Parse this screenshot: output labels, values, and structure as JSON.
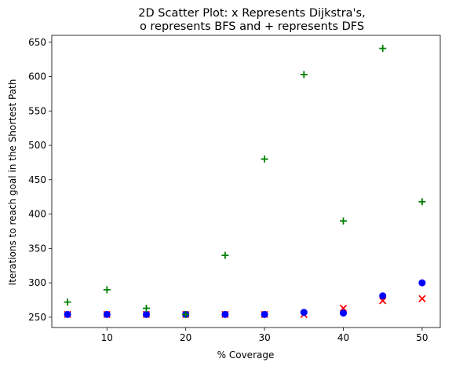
{
  "chart_data": {
    "type": "scatter",
    "title_line1": "2D Scatter Plot: x Represents Dijkstra's,",
    "title_line2": "o represents BFS and + represents DFS",
    "xlabel": "% Coverage",
    "ylabel": "Iterations to reach goal in the Shortest Path",
    "xlim": [
      3,
      52.3
    ],
    "ylim": [
      235,
      660
    ],
    "xticks": [
      10,
      20,
      30,
      40,
      50
    ],
    "yticks": [
      250,
      300,
      350,
      400,
      450,
      500,
      550,
      600,
      650
    ],
    "grid": false,
    "series": [
      {
        "marker": "x",
        "color": "#ff0000",
        "x": [
          5,
          10,
          15,
          20,
          25,
          30,
          35,
          40,
          45,
          50
        ],
        "y": [
          254,
          254,
          254,
          254,
          254,
          254,
          254,
          263,
          274,
          277
        ]
      },
      {
        "marker": "o",
        "color": "#0000ff",
        "x": [
          5,
          10,
          15,
          20,
          25,
          30,
          35,
          40,
          45,
          50
        ],
        "y": [
          254,
          254,
          254,
          254,
          254,
          254,
          257,
          256,
          281,
          300
        ]
      },
      {
        "marker": "+",
        "color": "#008000",
        "x": [
          5,
          10,
          15,
          20,
          25,
          30,
          35,
          40,
          45,
          50
        ],
        "y": [
          272,
          290,
          263,
          254,
          340,
          480,
          603,
          390,
          641,
          418
        ]
      }
    ]
  }
}
